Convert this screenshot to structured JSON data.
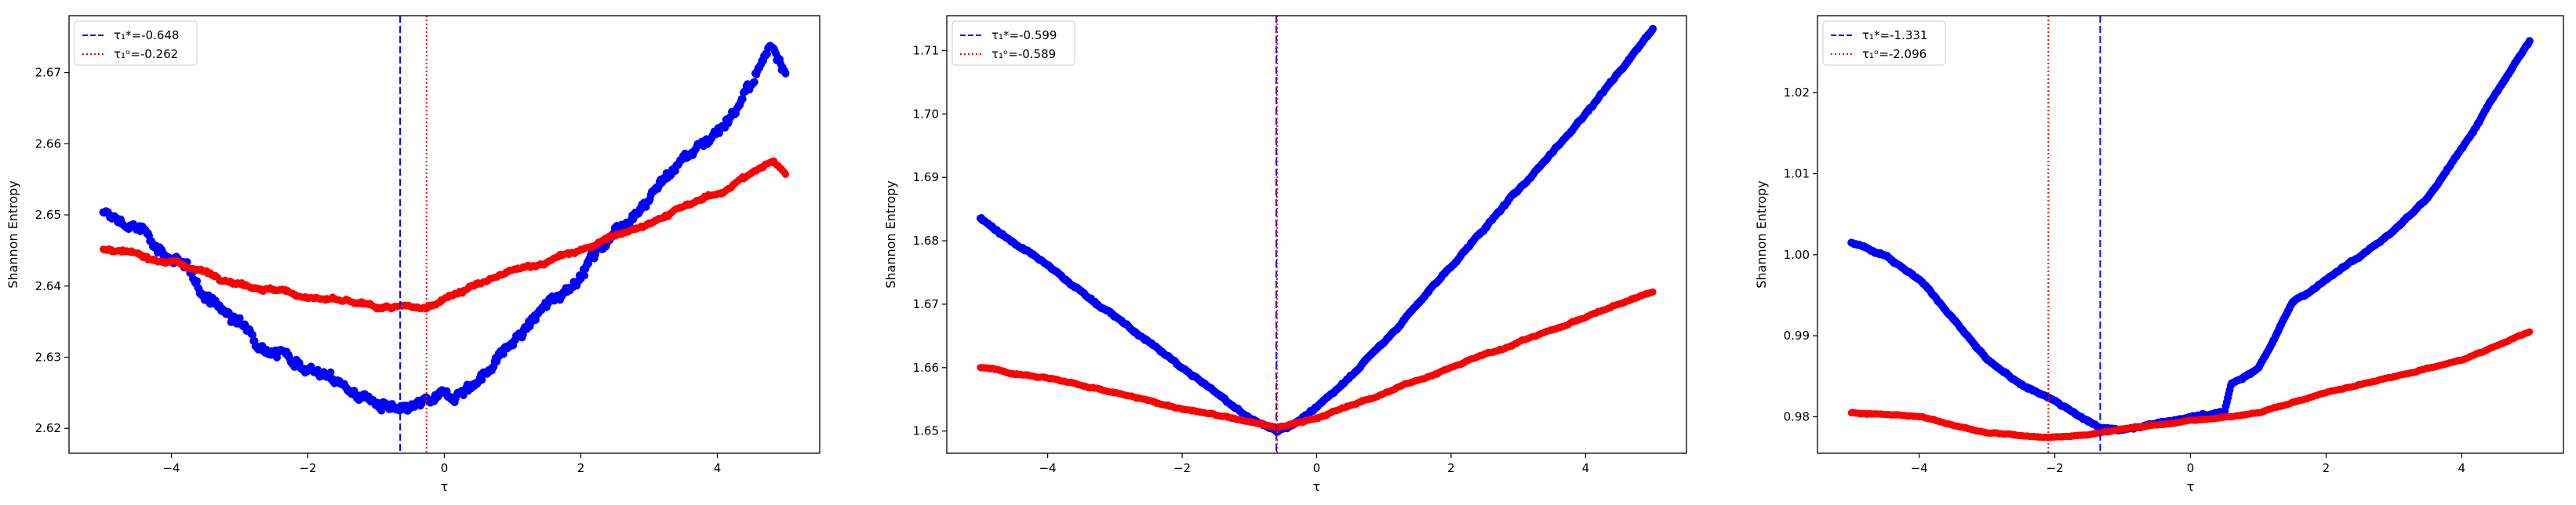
{
  "chart_data": [
    {
      "type": "scatter",
      "title": "",
      "xlabel": "τ",
      "ylabel": "Shannon Entropy",
      "xlim": [
        -5.5,
        5.5
      ],
      "ylim": [
        2.6165,
        2.678
      ],
      "xticks": [
        -4,
        -2,
        0,
        2,
        4
      ],
      "yticks": [
        2.62,
        2.63,
        2.64,
        2.65,
        2.66,
        2.67
      ],
      "ytick_decimals": 2,
      "grid": false,
      "legend_position": "top-left",
      "legend": [
        {
          "label": "τ₁*=-0.648",
          "color": "#0000ff",
          "style": "dashed"
        },
        {
          "label": "τ₁ᵒ=-0.262",
          "color": "#ff0000",
          "style": "dotted"
        }
      ],
      "vlines": [
        {
          "x": -0.648,
          "color": "#0000ff",
          "style": "dashed"
        },
        {
          "x": -0.262,
          "color": "#ff0000",
          "style": "dotted"
        }
      ],
      "series": [
        {
          "color": "#0000ff",
          "noise": 0.0012,
          "x": [
            -5.0,
            -4.5,
            -4.0,
            -3.5,
            -3.0,
            -2.5,
            -2.0,
            -1.5,
            -1.0,
            -0.648,
            -0.3,
            0.0,
            0.5,
            1.0,
            1.5,
            2.0,
            2.5,
            3.0,
            3.5,
            4.0,
            4.5,
            4.8,
            5.0
          ],
          "y": [
            2.65,
            2.648,
            2.644,
            2.639,
            2.6345,
            2.6315,
            2.629,
            2.626,
            2.6235,
            2.6215,
            2.623,
            2.624,
            2.627,
            2.632,
            2.637,
            2.642,
            2.648,
            2.653,
            2.658,
            2.662,
            2.668,
            2.674,
            2.671
          ]
        },
        {
          "color": "#ff0000",
          "noise": 0.0004,
          "x": [
            -5.0,
            -4.0,
            -3.0,
            -2.0,
            -1.0,
            -0.262,
            0.0,
            1.0,
            2.0,
            3.0,
            4.0,
            4.8,
            5.0
          ],
          "y": [
            2.645,
            2.6435,
            2.6405,
            2.6385,
            2.637,
            2.6368,
            2.6385,
            2.642,
            2.645,
            2.649,
            2.653,
            2.6575,
            2.656
          ]
        }
      ]
    },
    {
      "type": "scatter",
      "title": "",
      "xlabel": "τ",
      "ylabel": "Shannon Entropy",
      "xlim": [
        -5.5,
        5.5
      ],
      "ylim": [
        1.6465,
        1.7155
      ],
      "xticks": [
        -4,
        -2,
        0,
        2,
        4
      ],
      "yticks": [
        1.65,
        1.66,
        1.67,
        1.68,
        1.69,
        1.7,
        1.71
      ],
      "ytick_decimals": 2,
      "grid": false,
      "legend_position": "top-left",
      "legend": [
        {
          "label": "τ₁*=-0.599",
          "color": "#0000ff",
          "style": "dashed"
        },
        {
          "label": "τ₁ᵒ=-0.589",
          "color": "#ff0000",
          "style": "dotted"
        }
      ],
      "vlines": [
        {
          "x": -0.599,
          "color": "#0000ff",
          "style": "dashed"
        },
        {
          "x": -0.589,
          "color": "#ff0000",
          "style": "dotted"
        }
      ],
      "series": [
        {
          "color": "#0000ff",
          "noise": 0.0003,
          "x": [
            -5.0,
            -4.0,
            -3.0,
            -2.0,
            -1.5,
            -1.0,
            -0.6,
            -0.3,
            0.0,
            1.0,
            2.0,
            3.0,
            4.0,
            5.0
          ],
          "y": [
            1.6835,
            1.676,
            1.668,
            1.66,
            1.656,
            1.652,
            1.65,
            1.6515,
            1.6535,
            1.664,
            1.676,
            1.688,
            1.7,
            1.7135
          ]
        },
        {
          "color": "#ff0000",
          "noise": 0.0002,
          "x": [
            -5.0,
            -4.0,
            -3.0,
            -2.0,
            -1.0,
            -0.589,
            0.0,
            1.0,
            2.0,
            3.0,
            4.0,
            5.0
          ],
          "y": [
            1.66,
            1.6585,
            1.656,
            1.6535,
            1.6515,
            1.6505,
            1.652,
            1.656,
            1.66,
            1.664,
            1.668,
            1.672
          ]
        }
      ]
    },
    {
      "type": "scatter",
      "title": "",
      "xlabel": "τ",
      "ylabel": "Shannon Entropy",
      "xlim": [
        -5.5,
        5.5
      ],
      "ylim": [
        0.9755,
        1.0295
      ],
      "xticks": [
        -4,
        -2,
        0,
        2,
        4
      ],
      "yticks": [
        0.98,
        0.99,
        1.0,
        1.01,
        1.02
      ],
      "ytick_decimals": 2,
      "grid": false,
      "legend_position": "top-left",
      "legend": [
        {
          "label": "τ₁*=-1.331",
          "color": "#0000ff",
          "style": "dashed"
        },
        {
          "label": "τ₁ᵒ=-2.096",
          "color": "#ff0000",
          "style": "dotted"
        }
      ],
      "vlines": [
        {
          "x": -1.331,
          "color": "#0000ff",
          "style": "dashed"
        },
        {
          "x": -2.096,
          "color": "#ff0000",
          "style": "dotted"
        }
      ],
      "series": [
        {
          "color": "#0000ff",
          "noise": 0.0002,
          "x": [
            -5.0,
            -4.5,
            -4.0,
            -3.5,
            -3.0,
            -2.5,
            -2.0,
            -1.5,
            -1.331,
            -1.0,
            0.0,
            0.5,
            0.6,
            1.0,
            1.5,
            2.0,
            2.5,
            3.0,
            3.5,
            4.0,
            4.5,
            5.0
          ],
          "y": [
            1.0015,
            1.0,
            0.997,
            0.992,
            0.987,
            0.984,
            0.982,
            0.9795,
            0.9785,
            0.9785,
            0.98,
            0.9805,
            0.984,
            0.986,
            0.994,
            0.997,
            1.0,
            1.003,
            1.007,
            1.013,
            1.02,
            1.0265
          ]
        },
        {
          "color": "#ff0000",
          "noise": 0.0001,
          "x": [
            -5.0,
            -4.0,
            -3.0,
            -2.096,
            -1.5,
            -1.0,
            0.0,
            1.0,
            2.0,
            3.0,
            4.0,
            5.0
          ],
          "y": [
            0.9805,
            0.98,
            0.978,
            0.9775,
            0.9778,
            0.9785,
            0.9795,
            0.9805,
            0.983,
            0.985,
            0.987,
            0.9905
          ]
        }
      ]
    }
  ]
}
